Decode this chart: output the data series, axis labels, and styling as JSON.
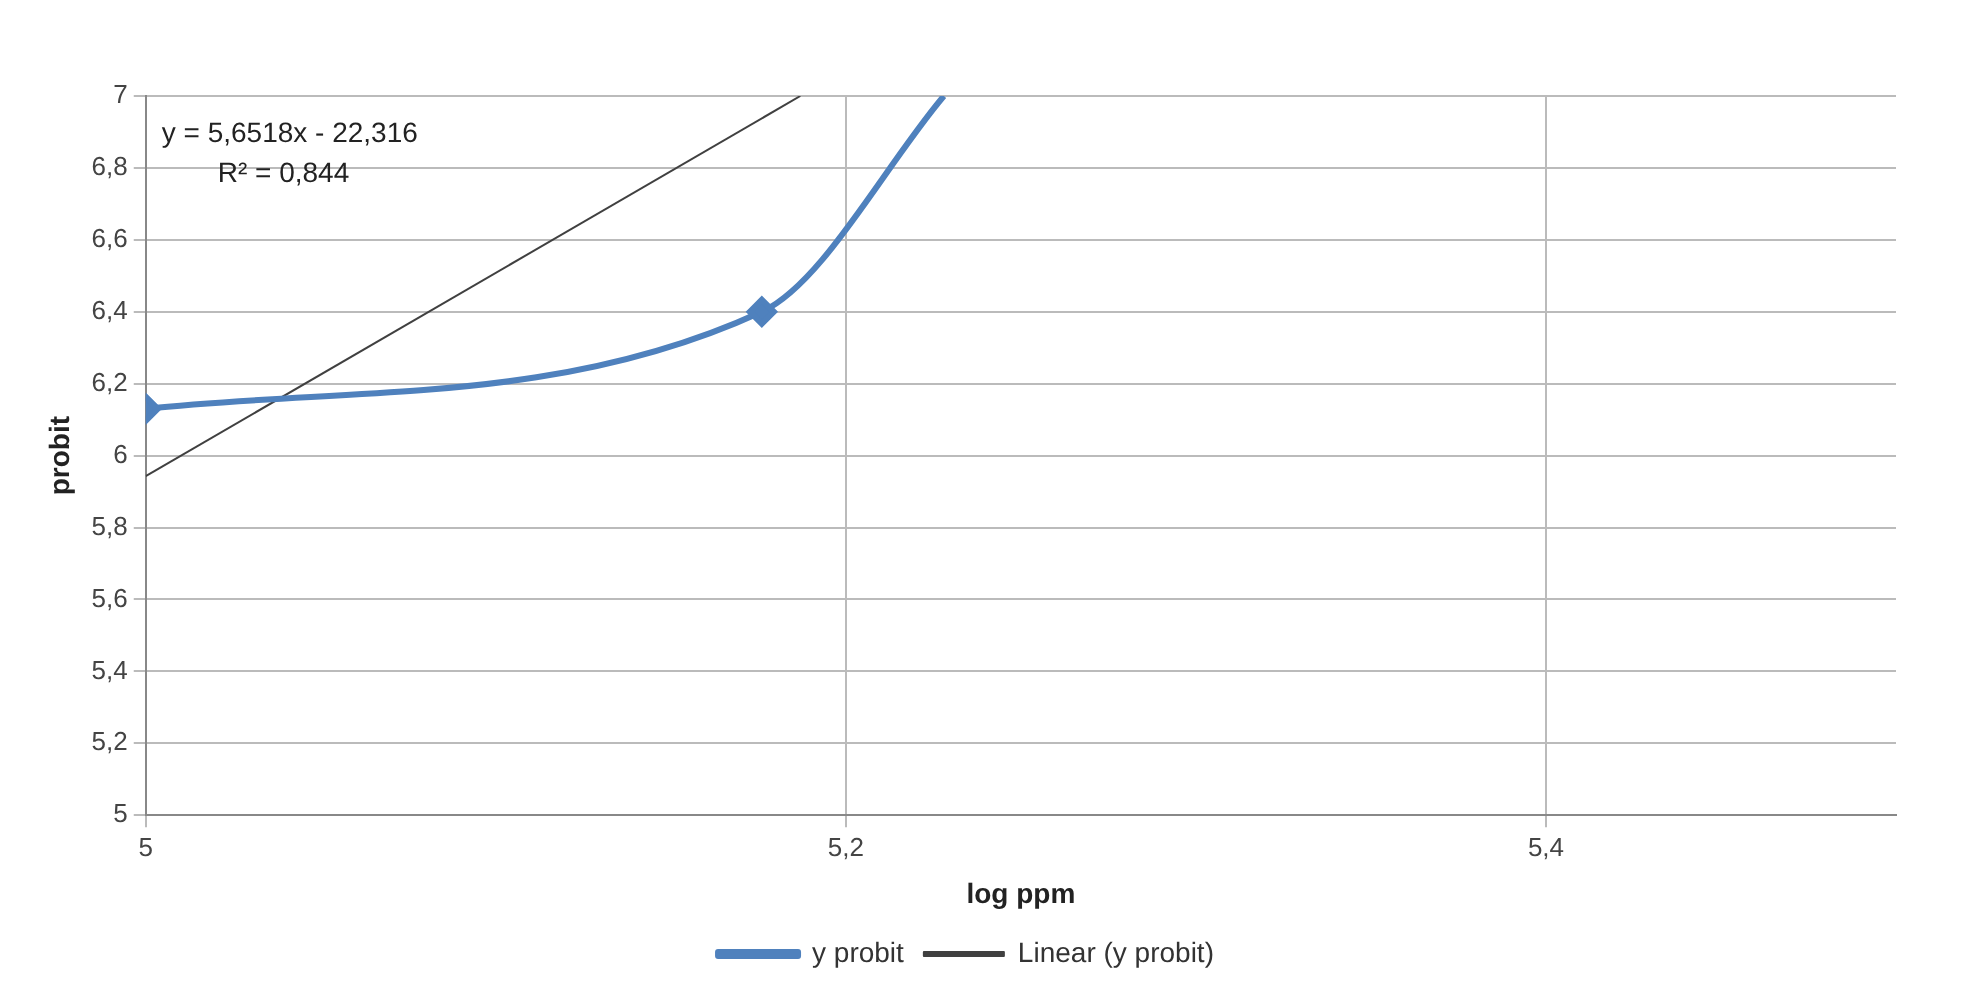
{
  "chart_data": {
    "type": "line",
    "xlabel": "log ppm",
    "ylabel": "probit",
    "xlim": [
      5,
      5.5
    ],
    "xticks": [
      5,
      {
        "value": 5.2,
        "label": "5,2"
      },
      {
        "value": 5.4,
        "label": "5,4"
      }
    ],
    "ylim": [
      5,
      7
    ],
    "yticks": [
      5,
      {
        "value": 5.2,
        "label": "5,2"
      },
      {
        "value": 5.4,
        "label": "5,4"
      },
      {
        "value": 5.6,
        "label": "5,6"
      },
      {
        "value": 5.8,
        "label": "5,8"
      },
      6,
      {
        "value": 6.2,
        "label": "6,2"
      },
      {
        "value": 6.4,
        "label": "6,4"
      },
      {
        "value": 6.6,
        "label": "6,6"
      },
      {
        "value": 6.8,
        "label": "6,8"
      },
      7
    ],
    "series": [
      {
        "name": "y probit",
        "color": "#4f81bd",
        "x": [
          5,
          5.176,
          5.228
        ],
        "values": [
          6.13,
          6.4,
          7.0
        ],
        "marker": "diamond",
        "line_style": "solid"
      },
      {
        "name": "Linear (y probit)",
        "color": "#404040",
        "x": [
          5,
          5.187
        ],
        "values": [
          5.943,
          7.0
        ],
        "marker": "none",
        "line_style": "solid"
      }
    ],
    "annotations": [
      "y = 5,6518x - 22,316",
      "R² = 0,844"
    ],
    "grid": true,
    "legend": "bottom"
  }
}
